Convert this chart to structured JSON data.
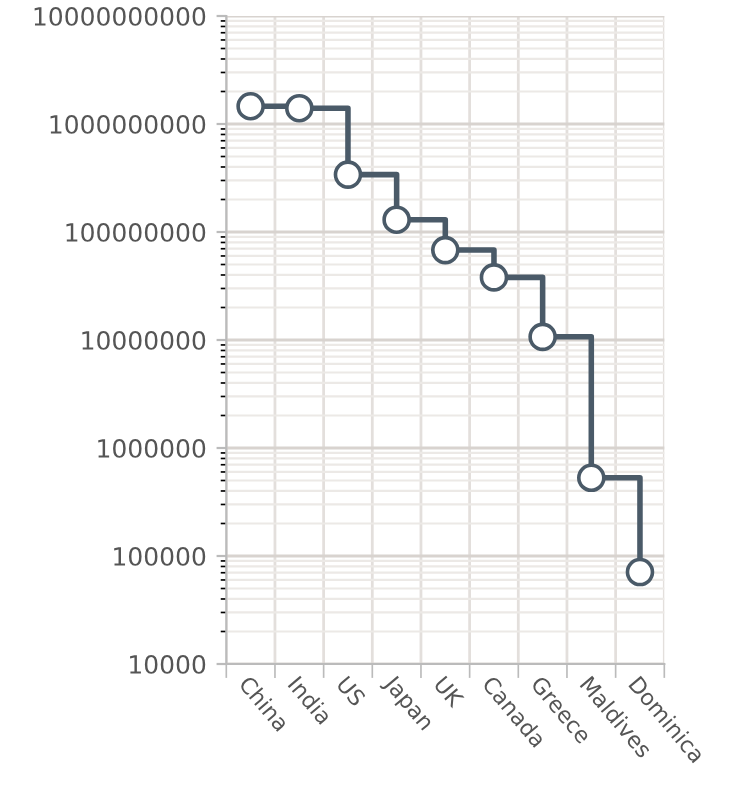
{
  "chart_data": {
    "type": "step",
    "categories": [
      "China",
      "India",
      "US",
      "Japan",
      "UK",
      "Canada",
      "Greece",
      "Maldives",
      "Dominica"
    ],
    "series": [
      {
        "color": "#4a5a68",
        "values": [
          1460000000,
          1400000000,
          340000000,
          130000000,
          68000000,
          38000000,
          10700000,
          530000,
          71000
        ]
      }
    ],
    "log": "y",
    "ylim": [
      10000,
      10000000000
    ],
    "yticks": [
      10000,
      100000,
      1000000,
      10000000,
      100000000,
      1000000000,
      10000000000
    ],
    "grid": true,
    "marker": "circle",
    "line_style": "solid",
    "legend": false
  }
}
